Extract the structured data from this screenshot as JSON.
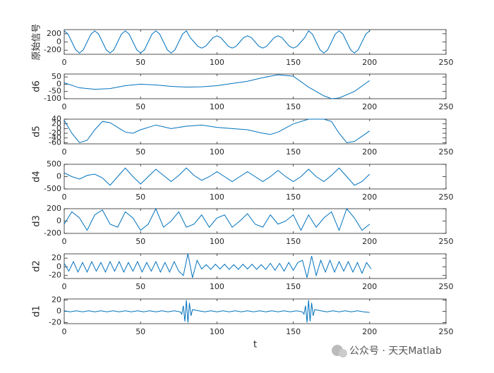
{
  "chart_data": [
    {
      "type": "line",
      "ylabel": "原始信号",
      "x": [
        0,
        2.5,
        5,
        7.5,
        10,
        12.5,
        15,
        17.5,
        20,
        22.5,
        25,
        27.5,
        30,
        32.5,
        35,
        37.5,
        40,
        42.5,
        45,
        47.5,
        50,
        52.5,
        55,
        57.5,
        60,
        62.5,
        65,
        67.5,
        70,
        72.5,
        75,
        77.5,
        80,
        82.5,
        85,
        87.5,
        90,
        92.5,
        95,
        97.5,
        100,
        102.5,
        105,
        107.5,
        110,
        112.5,
        115,
        117.5,
        120,
        122.5,
        125,
        127.5,
        130,
        132.5,
        135,
        137.5,
        140,
        142.5,
        145,
        147.5,
        150,
        152.5,
        155,
        157.5,
        160,
        162.5,
        165,
        167.5,
        170,
        172.5,
        175,
        177.5,
        180,
        182.5,
        185,
        187.5,
        190,
        192.5,
        195,
        197.5,
        200
      ],
      "series": [
        {
          "color": "#0072bd",
          "values": [
            270,
            191,
            0,
            -191,
            -270,
            -191,
            0,
            191,
            270,
            191,
            0,
            -191,
            -270,
            -191,
            0,
            191,
            270,
            191,
            0,
            -191,
            -270,
            -191,
            0,
            191,
            270,
            191,
            0,
            -191,
            -270,
            -191,
            0,
            191,
            270,
            106,
            0,
            -106,
            -150,
            -106,
            0,
            106,
            150,
            106,
            0,
            -106,
            -150,
            -106,
            0,
            106,
            150,
            106,
            0,
            -106,
            -150,
            -106,
            0,
            106,
            150,
            106,
            0,
            -106,
            -150,
            -106,
            0,
            106,
            270,
            191,
            0,
            -191,
            -270,
            -191,
            0,
            191,
            270,
            191,
            0,
            -191,
            -270,
            -191,
            0,
            191,
            270
          ]
        }
      ],
      "xlim": [
        0,
        250
      ],
      "xticks": [
        0,
        50,
        100,
        150,
        200,
        250
      ],
      "ylim": [
        -300,
        300
      ],
      "yticks": [
        -200,
        0,
        200
      ]
    },
    {
      "type": "line",
      "ylabel": "d6",
      "x": [
        0,
        10,
        20,
        30,
        40,
        50,
        60,
        70,
        80,
        90,
        100,
        110,
        120,
        130,
        140,
        150,
        160,
        170,
        175,
        180,
        190,
        200
      ],
      "series": [
        {
          "color": "#0072bd",
          "values": [
            10,
            -25,
            -35,
            -30,
            -10,
            0,
            -5,
            -15,
            -20,
            -18,
            -10,
            5,
            20,
            45,
            65,
            55,
            -20,
            -80,
            -100,
            -95,
            -50,
            25
          ]
        }
      ],
      "xlim": [
        0,
        250
      ],
      "xticks": [
        0,
        50,
        100,
        150,
        200,
        250
      ],
      "ylim": [
        -100,
        70
      ],
      "yticks": [
        -100,
        -50,
        0,
        50
      ]
    },
    {
      "type": "line",
      "ylabel": "d5",
      "x": [
        0,
        5,
        10,
        15,
        20,
        25,
        30,
        35,
        40,
        45,
        50,
        55,
        60,
        70,
        80,
        90,
        100,
        110,
        120,
        130,
        135,
        140,
        150,
        160,
        170,
        175,
        180,
        185,
        190,
        200
      ],
      "series": [
        {
          "color": "#0072bd",
          "values": [
            35,
            -20,
            -60,
            -50,
            -5,
            30,
            25,
            5,
            -15,
            -20,
            -5,
            5,
            15,
            0,
            10,
            15,
            5,
            0,
            -5,
            -20,
            -25,
            -15,
            20,
            40,
            40,
            30,
            -20,
            -60,
            -55,
            -10
          ]
        }
      ],
      "xlim": [
        0,
        250
      ],
      "xticks": [
        0,
        50,
        100,
        150,
        200,
        250
      ],
      "ylim": [
        -65,
        40
      ],
      "yticks": [
        -60,
        -40,
        -20,
        0,
        20,
        40
      ]
    },
    {
      "type": "line",
      "ylabel": "d4",
      "x": [
        0,
        5,
        10,
        15,
        20,
        25,
        30,
        35,
        40,
        45,
        50,
        55,
        60,
        65,
        70,
        75,
        80,
        85,
        90,
        95,
        100,
        105,
        110,
        115,
        120,
        125,
        130,
        135,
        140,
        145,
        150,
        155,
        160,
        165,
        170,
        175,
        180,
        185,
        190,
        195,
        200
      ],
      "series": [
        {
          "color": "#0072bd",
          "values": [
            150,
            0,
            -100,
            50,
            100,
            -50,
            -350,
            0,
            350,
            0,
            -300,
            0,
            300,
            50,
            -200,
            50,
            350,
            50,
            -150,
            0,
            200,
            0,
            -200,
            0,
            200,
            0,
            -200,
            0,
            250,
            0,
            -200,
            0,
            300,
            0,
            -200,
            50,
            350,
            0,
            -350,
            -200,
            100
          ]
        }
      ],
      "xlim": [
        0,
        250
      ],
      "xticks": [
        0,
        50,
        100,
        150,
        200,
        250
      ],
      "ylim": [
        -500,
        500
      ],
      "yticks": [
        -500,
        0,
        500
      ]
    },
    {
      "type": "line",
      "ylabel": "d3",
      "x": [
        0,
        5,
        10,
        15,
        20,
        25,
        30,
        35,
        40,
        45,
        50,
        55,
        60,
        65,
        70,
        75,
        80,
        85,
        90,
        95,
        100,
        105,
        110,
        115,
        120,
        125,
        130,
        135,
        140,
        145,
        150,
        155,
        160,
        165,
        170,
        175,
        180,
        185,
        190,
        195,
        200
      ],
      "series": [
        {
          "color": "#0072bd",
          "values": [
            -50,
            150,
            50,
            -150,
            100,
            180,
            -50,
            -100,
            150,
            50,
            -150,
            -50,
            200,
            -100,
            0,
            150,
            -100,
            -50,
            100,
            -100,
            50,
            100,
            -100,
            0,
            120,
            -50,
            -100,
            100,
            -50,
            0,
            100,
            -150,
            100,
            -100,
            50,
            150,
            -150,
            200,
            50,
            -150,
            -50
          ]
        }
      ],
      "xlim": [
        0,
        250
      ],
      "xticks": [
        0,
        50,
        100,
        150,
        200,
        250
      ],
      "ylim": [
        -200,
        200
      ],
      "yticks": [
        -200,
        0,
        200
      ]
    },
    {
      "type": "line",
      "ylabel": "d2",
      "x": [
        0,
        3,
        6,
        9,
        12,
        15,
        18,
        21,
        24,
        27,
        30,
        33,
        36,
        39,
        42,
        45,
        48,
        51,
        54,
        57,
        60,
        63,
        66,
        69,
        72,
        75,
        78,
        81,
        84,
        87,
        90,
        93,
        96,
        99,
        102,
        105,
        108,
        111,
        114,
        117,
        120,
        123,
        126,
        129,
        132,
        135,
        138,
        141,
        144,
        147,
        150,
        153,
        156,
        159,
        162,
        165,
        168,
        171,
        174,
        177,
        180,
        183,
        186,
        189,
        192,
        195,
        198,
        201
      ],
      "series": [
        {
          "color": "#0072bd",
          "values": [
            8,
            -10,
            12,
            -12,
            10,
            -12,
            12,
            -10,
            10,
            -12,
            12,
            -10,
            12,
            -12,
            10,
            -10,
            12,
            -12,
            10,
            -10,
            12,
            -12,
            10,
            -12,
            12,
            -10,
            -20,
            30,
            -25,
            15,
            -5,
            5,
            -6,
            6,
            -5,
            6,
            -6,
            5,
            -6,
            6,
            -5,
            6,
            -6,
            5,
            -6,
            8,
            -8,
            8,
            -10,
            10,
            -8,
            10,
            15,
            -25,
            25,
            -20,
            15,
            -12,
            15,
            -12,
            12,
            -10,
            12,
            -12,
            10,
            -15,
            10,
            -5
          ]
        }
      ],
      "xlim": [
        0,
        250
      ],
      "xticks": [
        0,
        50,
        100,
        150,
        200,
        250
      ],
      "ylim": [
        -27,
        30
      ],
      "yticks": [
        -20,
        0,
        20
      ]
    },
    {
      "type": "line",
      "ylabel": "d1",
      "xlabel": "t",
      "x": [
        0,
        4,
        8,
        12,
        16,
        20,
        24,
        28,
        32,
        36,
        40,
        44,
        48,
        52,
        56,
        60,
        64,
        68,
        72,
        76,
        77,
        78,
        79,
        80,
        81,
        82,
        83,
        84,
        88,
        92,
        96,
        100,
        104,
        108,
        112,
        116,
        120,
        124,
        128,
        132,
        136,
        140,
        144,
        148,
        152,
        156,
        157,
        158,
        159,
        160,
        161,
        162,
        163,
        164,
        168,
        172,
        176,
        180,
        184,
        188,
        192,
        196,
        200
      ],
      "series": [
        {
          "color": "#0072bd",
          "values": [
            1,
            -1,
            1,
            -1,
            1,
            -1,
            1,
            -1,
            1,
            -1,
            1,
            -1,
            1,
            -1,
            1,
            -1,
            1,
            -1,
            1,
            -1,
            -5,
            10,
            -18,
            20,
            -20,
            15,
            -8,
            3,
            1,
            -1,
            1,
            -1,
            1,
            -1,
            1,
            -1,
            1,
            -1,
            1,
            -1,
            1,
            -1,
            1,
            -1,
            1,
            -1,
            -5,
            10,
            -20,
            20,
            -18,
            15,
            -8,
            3,
            1,
            -1,
            1,
            -1,
            1,
            -1,
            1,
            -1,
            -2
          ]
        }
      ],
      "xlim": [
        0,
        250
      ],
      "xticks": [
        0,
        50,
        100,
        150,
        200,
        250
      ],
      "ylim": [
        -22,
        22
      ],
      "yticks": [
        -20,
        0,
        20
      ]
    }
  ],
  "watermark": "公众号 · 天天Matlab"
}
